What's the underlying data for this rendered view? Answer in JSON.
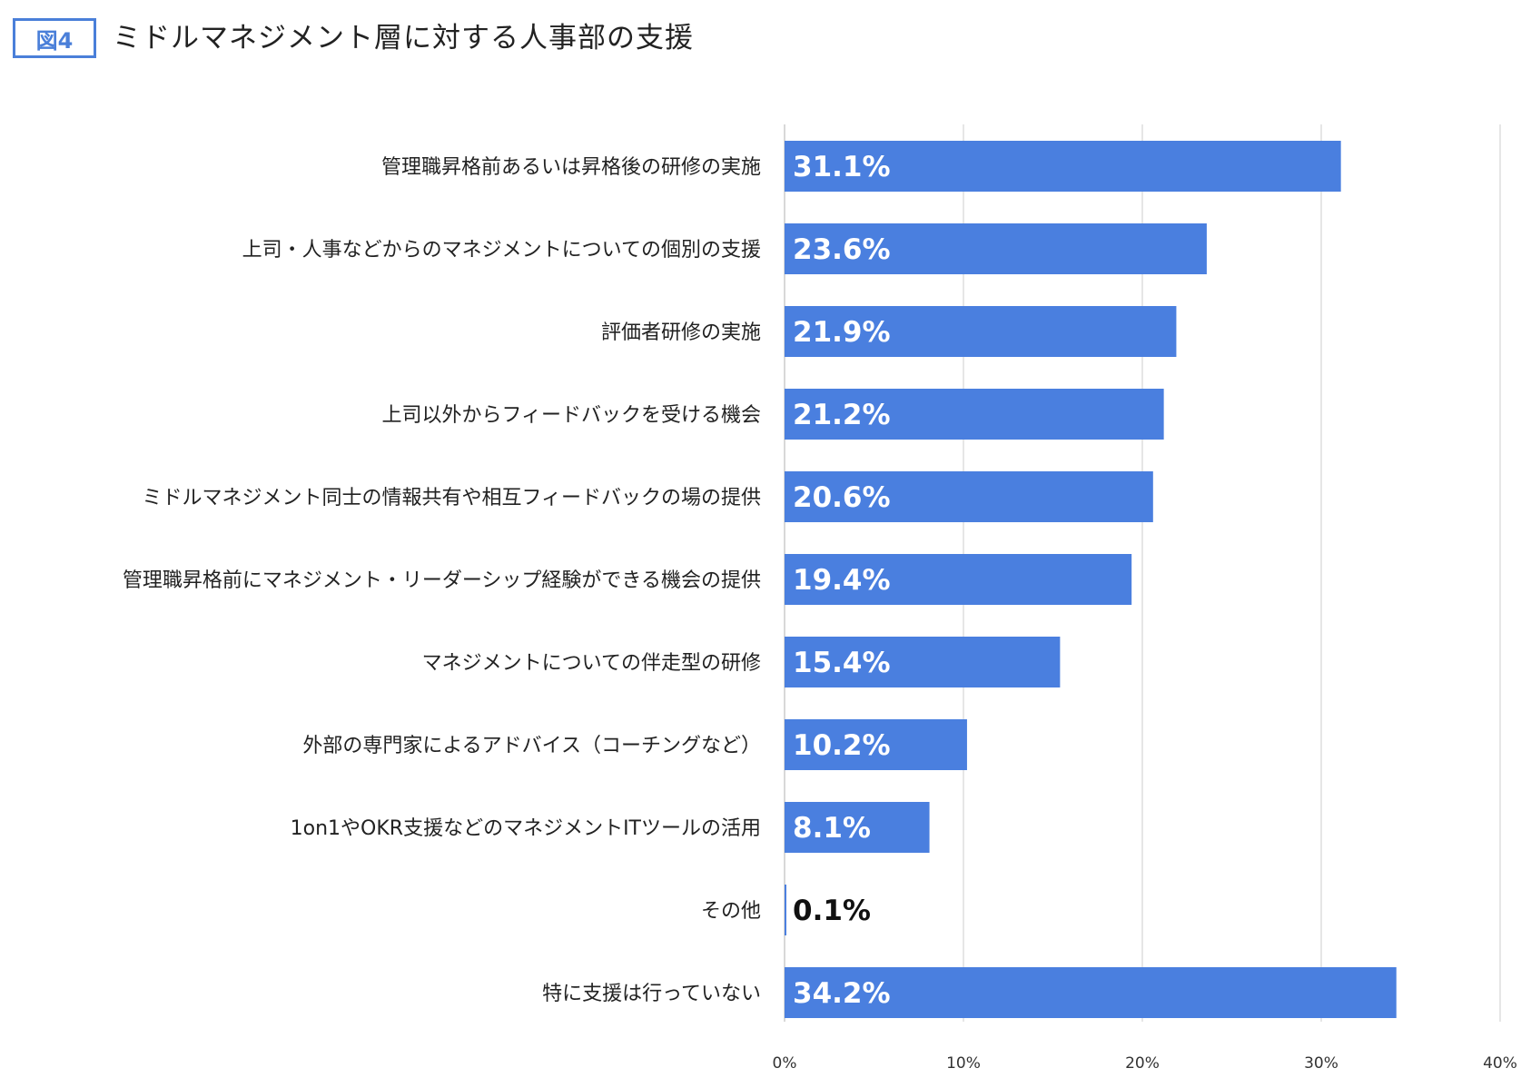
{
  "header": {
    "figure_label": "図4",
    "title": "ミドルマネジメント層に対する人事部の支援"
  },
  "colors": {
    "bar": "#4a7fdf",
    "badge": "#4a7fd9",
    "grid": "#dddddd",
    "label_inside": "#ffffff",
    "label_outside": "#111111"
  },
  "chart_data": {
    "type": "bar",
    "orientation": "horizontal",
    "title": "ミドルマネジメント層に対する人事部の支援",
    "categories": [
      "管理職昇格前あるいは昇格後の研修の実施",
      "上司・人事などからのマネジメントについての個別の支援",
      "評価者研修の実施",
      "上司以外からフィードバックを受ける機会",
      "ミドルマネジメント同士の情報共有や相互フィードバックの場の提供",
      "管理職昇格前にマネジメント・リーダーシップ経験ができる機会の提供",
      "マネジメントについての伴走型の研修",
      "外部の専門家によるアドバイス（コーチングなど）",
      "1on1やOKR支援などのマネジメントITツールの活用",
      "その他",
      "特に支援は行っていない"
    ],
    "values": [
      31.1,
      23.6,
      21.9,
      21.2,
      20.6,
      19.4,
      15.4,
      10.2,
      8.1,
      0.1,
      34.2
    ],
    "value_labels": [
      "31.1%",
      "23.6%",
      "21.9%",
      "21.2%",
      "20.6%",
      "19.4%",
      "15.4%",
      "10.2%",
      "8.1%",
      "0.1%",
      "34.2%"
    ],
    "xlim": [
      0,
      40
    ],
    "xticks": [
      0,
      10,
      20,
      30,
      40
    ],
    "xtick_labels": [
      "0%",
      "10%",
      "20%",
      "30%",
      "40%"
    ],
    "xlabel": "",
    "ylabel": "",
    "grid": true,
    "legend": false
  }
}
